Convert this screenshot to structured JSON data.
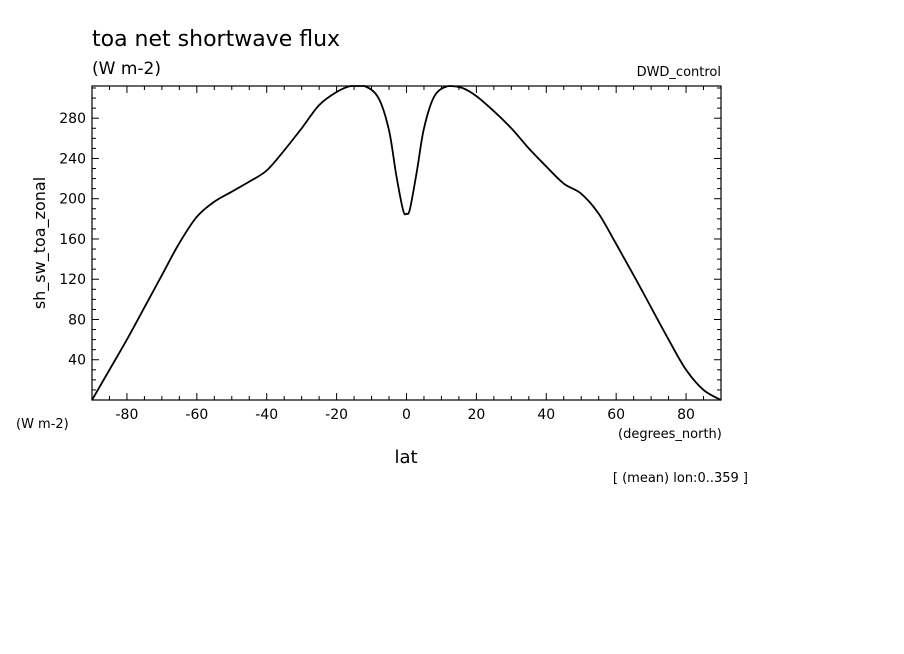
{
  "chart_data": {
    "type": "line",
    "title": "toa net shortwave flux",
    "subtitle": "(W m-2)",
    "dataset": "DWD_control",
    "ylabel": "sh_sw_toa_zonal",
    "y_units": "(W m-2)",
    "xlabel": "lat",
    "x_units": "(degrees_north)",
    "footnote": "[ (mean) lon:0..359 ]",
    "xlim": [
      -90,
      90
    ],
    "ylim": [
      0,
      312
    ],
    "x_ticks": [
      -80,
      -60,
      -40,
      -20,
      0,
      20,
      40,
      60,
      80
    ],
    "x_tick_labels": [
      "-80",
      "-60",
      "-40",
      "-20",
      "0",
      "20",
      "40",
      "60",
      "80"
    ],
    "y_ticks": [
      40,
      80,
      120,
      160,
      200,
      240,
      280
    ],
    "y_tick_labels": [
      "40",
      "80",
      "120",
      "160",
      "200",
      "240",
      "280"
    ],
    "grid": false,
    "line_color": "#000000",
    "series": [
      {
        "x": [
          -90,
          -85,
          -80,
          -75,
          -70,
          -65,
          -60,
          -55,
          -50,
          -45,
          -40,
          -35,
          -30,
          -25,
          -20,
          -16,
          -12,
          -8,
          -5,
          -3,
          -1,
          0,
          1,
          3,
          5,
          8,
          12,
          16,
          20,
          25,
          30,
          35,
          40,
          45,
          50,
          55,
          60,
          65,
          70,
          75,
          80,
          85,
          90
        ],
        "y": [
          0,
          30,
          60,
          92,
          124,
          156,
          182,
          197,
          207,
          217,
          228,
          248,
          270,
          293,
          306,
          313,
          313,
          300,
          268,
          225,
          189,
          185,
          190,
          228,
          270,
          302,
          313,
          310,
          302,
          287,
          270,
          250,
          232,
          215,
          205,
          185,
          155,
          124,
          92,
          60,
          30,
          10,
          0
        ]
      }
    ]
  }
}
